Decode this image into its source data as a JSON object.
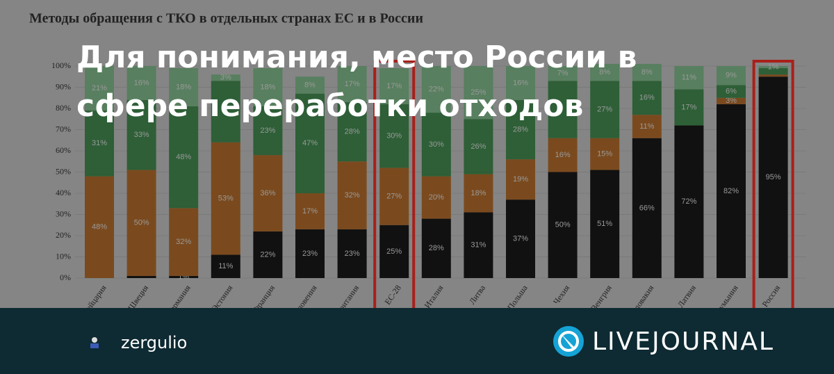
{
  "headline": [
    "Для понимания, место России в",
    "сфере переработки отходов"
  ],
  "author": "zergulio",
  "brand": "LIVEJOURNAL",
  "chart_data": {
    "type": "stacked-bar",
    "title": "Методы обращения с ТКО в отдельных странах ЕС и в России",
    "categories": [
      "Швейцария",
      "Швеция",
      "Германия",
      "Эстония",
      "Франция",
      "Словения",
      "Британия",
      "ЕС-28",
      "Италия",
      "Литва",
      "Польша",
      "Чехия",
      "Венгрия",
      "Словакия",
      "Латвия",
      "Румыния",
      "Россия"
    ],
    "highlight": [
      "ЕС-28",
      "Россия"
    ],
    "ylim": [
      0,
      100
    ],
    "yticks": [
      {
        "value": 0,
        "label": "0%"
      },
      {
        "value": 10,
        "label": "10%"
      },
      {
        "value": 20,
        "label": "20%"
      },
      {
        "value": 30,
        "label": "30%"
      },
      {
        "value": 40,
        "label": "40%"
      },
      {
        "value": 50,
        "label": "50%"
      },
      {
        "value": 60,
        "label": "60%"
      },
      {
        "value": 70,
        "label": "70%"
      },
      {
        "value": 80,
        "label": "80%"
      },
      {
        "value": 90,
        "label": "90%"
      },
      {
        "value": 100,
        "label": "100%"
      }
    ],
    "grid": true,
    "series": [
      {
        "color": "#111111",
        "values": [
          0,
          1,
          1,
          11,
          22,
          23,
          23,
          25,
          28,
          31,
          37,
          50,
          51,
          66,
          72,
          82,
          95
        ],
        "value_labels": [
          null,
          null,
          "1%",
          "11%",
          "22%",
          "23%",
          "23%",
          "25%",
          "28%",
          "31%",
          "37%",
          "50%",
          "51%",
          "66%",
          "72%",
          "82%",
          "95%"
        ]
      },
      {
        "color": "#7a4a1e",
        "values": [
          48,
          50,
          32,
          53,
          36,
          17,
          32,
          27,
          20,
          18,
          19,
          16,
          15,
          11,
          0,
          3,
          1
        ],
        "value_labels": [
          "48%",
          "50%",
          "32%",
          "53%",
          "36%",
          "17%",
          "32%",
          "27%",
          "20%",
          "18%",
          "19%",
          "16%",
          "15%",
          "11%",
          null,
          "3%",
          null
        ]
      },
      {
        "color": "#2e5f37",
        "values": [
          31,
          33,
          48,
          29,
          23,
          47,
          28,
          30,
          30,
          26,
          28,
          27,
          27,
          16,
          17,
          6,
          3
        ],
        "value_labels": [
          "31%",
          "33%",
          "48%",
          null,
          "23%",
          "47%",
          "28%",
          "30%",
          "30%",
          "26%",
          "28%",
          null,
          "27%",
          "16%",
          "17%",
          "6%",
          null
        ]
      },
      {
        "color": "#587f5f",
        "values": [
          21,
          16,
          18,
          3,
          18,
          8,
          17,
          17,
          22,
          25,
          16,
          7,
          8,
          8,
          11,
          9,
          1
        ],
        "value_labels": [
          "21%",
          "16%",
          "18%",
          "3%",
          "18%",
          "8%",
          "17%",
          "17%",
          "22%",
          "25%",
          "16%",
          "7%",
          "8%",
          "8%",
          "11%",
          "9%",
          "1%"
        ]
      }
    ]
  }
}
